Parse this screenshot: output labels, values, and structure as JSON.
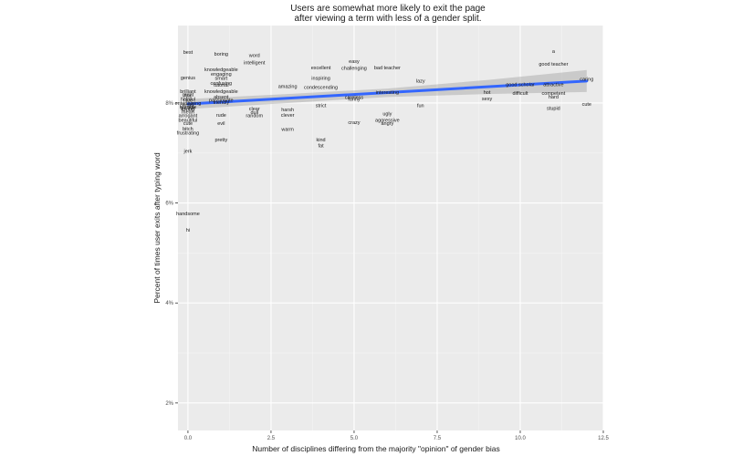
{
  "chart_data": {
    "type": "scatter",
    "title_lines": [
      "Users are somewhat more likely to exit the page",
      "after viewing a term with less of a gender split."
    ],
    "xlabel": "Number of disciplines differing from the majority \"opinion\" of gender bias",
    "ylabel": "Percent of times user exits after typing word",
    "xlim": [
      -0.3,
      12.5
    ],
    "ylim": [
      0.0145,
      0.0955
    ],
    "x_ticks": [
      {
        "value": 0,
        "label": "0.0"
      },
      {
        "value": 2.5,
        "label": "2.5"
      },
      {
        "value": 5,
        "label": "5.0"
      },
      {
        "value": 7.5,
        "label": "7.5"
      },
      {
        "value": 10,
        "label": "10.0"
      },
      {
        "value": 12.5,
        "label": "12.5"
      }
    ],
    "y_ticks": [
      {
        "value": 0.02,
        "label": "2%"
      },
      {
        "value": 0.04,
        "label": "4%"
      },
      {
        "value": 0.06,
        "label": "6%"
      },
      {
        "value": 0.08,
        "label": "8%"
      }
    ],
    "grid": true,
    "points": [
      {
        "word": "best",
        "x": 0,
        "y": 0.0902
      },
      {
        "word": "boring",
        "x": 1,
        "y": 0.0898
      },
      {
        "word": "word",
        "x": 2,
        "y": 0.0896
      },
      {
        "word": "intelligent",
        "x": 2,
        "y": 0.0881
      },
      {
        "word": "easy",
        "x": 5,
        "y": 0.0884
      },
      {
        "word": "excellent",
        "x": 4,
        "y": 0.0871
      },
      {
        "word": "challenging",
        "x": 5,
        "y": 0.087
      },
      {
        "word": "bad teacher",
        "x": 6,
        "y": 0.0871
      },
      {
        "word": "a",
        "x": 11,
        "y": 0.0904
      },
      {
        "word": "good teacher",
        "x": 11,
        "y": 0.0878
      },
      {
        "word": "knowledgeable",
        "x": 1,
        "y": 0.0867
      },
      {
        "word": "engaging",
        "x": 1,
        "y": 0.0858
      },
      {
        "word": "genius",
        "x": 0,
        "y": 0.0851
      },
      {
        "word": "smart",
        "x": 1,
        "y": 0.085
      },
      {
        "word": "inspiring",
        "x": 4,
        "y": 0.085
      },
      {
        "word": "lazy",
        "x": 7,
        "y": 0.0845
      },
      {
        "word": "caring",
        "x": 12,
        "y": 0.0848
      },
      {
        "word": "confusing",
        "x": 1,
        "y": 0.084
      },
      {
        "word": "tutorial",
        "x": 1,
        "y": 0.0836
      },
      {
        "word": "amazing",
        "x": 3,
        "y": 0.0834
      },
      {
        "word": "condescending",
        "x": 4,
        "y": 0.0832
      },
      {
        "word": "good scholar",
        "x": 10,
        "y": 0.0837
      },
      {
        "word": "attractive",
        "x": 11,
        "y": 0.0837
      },
      {
        "word": "brilliant",
        "x": 0,
        "y": 0.0824
      },
      {
        "word": "knowledgeable",
        "x": 1,
        "y": 0.0824
      },
      {
        "word": "interesting",
        "x": 6,
        "y": 0.0822
      },
      {
        "word": "hot",
        "x": 9,
        "y": 0.0822
      },
      {
        "word": "difficult",
        "x": 10,
        "y": 0.082
      },
      {
        "word": "competent",
        "x": 11,
        "y": 0.082
      },
      {
        "word": "great",
        "x": 0,
        "y": 0.0817
      },
      {
        "word": "fair",
        "x": 0,
        "y": 0.0815
      },
      {
        "word": "hard",
        "x": 11,
        "y": 0.0813
      },
      {
        "word": "absent",
        "x": 1,
        "y": 0.0813
      },
      {
        "word": "careless",
        "x": 5,
        "y": 0.0812
      },
      {
        "word": "funny",
        "x": 5,
        "y": 0.0808
      },
      {
        "word": "helpful",
        "x": 0,
        "y": 0.0808
      },
      {
        "word": "nice",
        "x": 0,
        "y": 0.0806
      },
      {
        "word": "passionate",
        "x": 1,
        "y": 0.0806
      },
      {
        "word": "sexy",
        "x": 9,
        "y": 0.0809
      },
      {
        "word": "friendly",
        "x": 1,
        "y": 0.0802
      },
      {
        "word": "entertaining",
        "x": 0,
        "y": 0.08
      },
      {
        "word": "weird",
        "x": 0,
        "y": 0.0797
      },
      {
        "word": "cute",
        "x": 12,
        "y": 0.0798
      },
      {
        "word": "strict",
        "x": 4,
        "y": 0.0795
      },
      {
        "word": "fun",
        "x": 7,
        "y": 0.0795
      },
      {
        "word": "horrible",
        "x": 0,
        "y": 0.0793
      },
      {
        "word": "terrible",
        "x": 0,
        "y": 0.079
      },
      {
        "word": "loving",
        "x": 0,
        "y": 0.0788
      },
      {
        "word": "stupid",
        "x": 11,
        "y": 0.079
      },
      {
        "word": "clear",
        "x": 2,
        "y": 0.0789
      },
      {
        "word": "harsh",
        "x": 3,
        "y": 0.0787
      },
      {
        "word": "mean",
        "x": 0,
        "y": 0.0783
      },
      {
        "word": "dull",
        "x": 2,
        "y": 0.0782
      },
      {
        "word": "ugly",
        "x": 6,
        "y": 0.0779
      },
      {
        "word": "arrogant",
        "x": 0,
        "y": 0.0775
      },
      {
        "word": "rude",
        "x": 1,
        "y": 0.0776
      },
      {
        "word": "random",
        "x": 2,
        "y": 0.0775
      },
      {
        "word": "clever",
        "x": 3,
        "y": 0.0776
      },
      {
        "word": "beautiful",
        "x": 0,
        "y": 0.0766
      },
      {
        "word": "aggressive",
        "x": 6,
        "y": 0.0766
      },
      {
        "word": "crazy",
        "x": 5,
        "y": 0.0762
      },
      {
        "word": "angry",
        "x": 6,
        "y": 0.076
      },
      {
        "word": "cute",
        "x": 0,
        "y": 0.076
      },
      {
        "word": "evil",
        "x": 1,
        "y": 0.076
      },
      {
        "word": "bitch",
        "x": 0,
        "y": 0.0749
      },
      {
        "word": "warm",
        "x": 3,
        "y": 0.0748
      },
      {
        "word": "frustrating",
        "x": 0,
        "y": 0.0741
      },
      {
        "word": "pretty",
        "x": 1,
        "y": 0.0727
      },
      {
        "word": "kind",
        "x": 4,
        "y": 0.0727
      },
      {
        "word": "fat",
        "x": 4,
        "y": 0.0715
      },
      {
        "word": "jerk",
        "x": 0,
        "y": 0.0704
      },
      {
        "word": "handsome",
        "x": 0,
        "y": 0.0579
      },
      {
        "word": "hi",
        "x": 0,
        "y": 0.0546
      }
    ],
    "trend_line": {
      "x": [
        0,
        12
      ],
      "y": [
        0.0798,
        0.0844
      ]
    },
    "confidence_band": {
      "x": [
        0,
        3,
        6,
        9,
        12
      ],
      "upper": [
        0.0808,
        0.0818,
        0.0829,
        0.0846,
        0.0866
      ],
      "lower": [
        0.0788,
        0.08,
        0.0812,
        0.0818,
        0.0822
      ]
    }
  }
}
